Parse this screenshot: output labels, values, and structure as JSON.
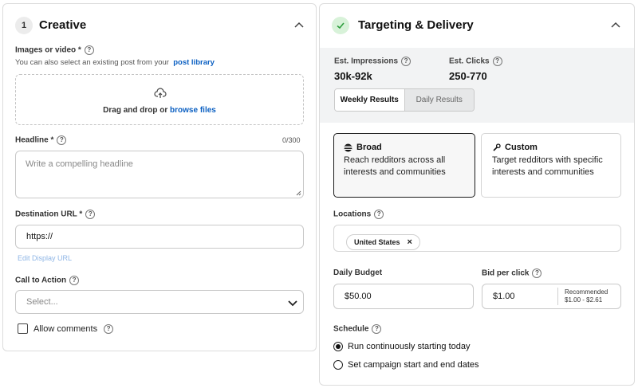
{
  "creative": {
    "step": "1",
    "title": "Creative",
    "media": {
      "label": "Images or video *",
      "hint_prefix": "You can also select an existing post from your",
      "hint_link": "post library",
      "drop_text": "Drag and drop or",
      "browse_link": "browse files"
    },
    "headline": {
      "label": "Headline *",
      "counter": "0/300",
      "placeholder": "Write a compelling headline"
    },
    "destination": {
      "label": "Destination URL *",
      "value": "https://",
      "edit_link": "Edit Display URL"
    },
    "cta": {
      "label": "Call to Action",
      "placeholder": "Select..."
    },
    "comments": {
      "label": "Allow comments",
      "checked": false
    }
  },
  "targeting": {
    "title": "Targeting & Delivery",
    "impressions_label": "Est. Impressions",
    "impressions_value": "30k-92k",
    "clicks_label": "Est. Clicks",
    "clicks_value": "250-770",
    "tabs": [
      "Weekly Results",
      "Daily Results"
    ],
    "active_tab": "Weekly Results",
    "broad": {
      "title": "Broad",
      "description": "Reach redditors across all interests and communities",
      "selected": true
    },
    "custom": {
      "title": "Custom",
      "description": "Target redditors with specific interests and communities",
      "selected": false
    },
    "locations_label": "Locations",
    "location_chip": "United States",
    "budget_label": "Daily Budget",
    "budget_value": "$50.00",
    "bid_label": "Bid per click",
    "bid_value": "$1.00",
    "recommended_label": "Recommended",
    "recommended_range": "$1.00 - $2.61",
    "schedule_label": "Schedule",
    "schedule_options": [
      "Run continuously starting today",
      "Set campaign start and end dates"
    ],
    "schedule_selected": "Run continuously starting today"
  },
  "colors": {
    "link": "#0a5fc2",
    "check_bg": "#d8f2d9",
    "check_fg": "#2e9e3e",
    "band": "#f2f3f4"
  }
}
